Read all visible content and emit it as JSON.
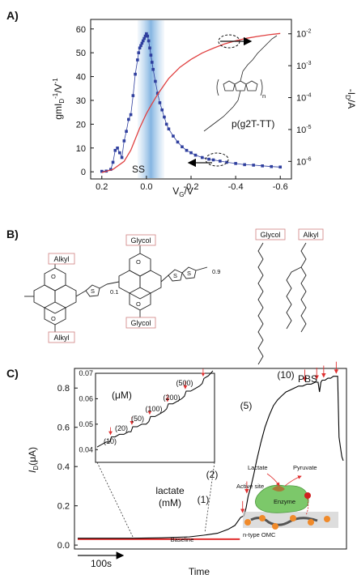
{
  "panels": {
    "a": {
      "letter": "A)"
    },
    "b": {
      "letter": "B)"
    },
    "c": {
      "letter": "C)"
    }
  },
  "chart_data": [
    {
      "type": "line",
      "panel": "A)",
      "xlabel": "V",
      "xlabel_sub": "G",
      "xlabel_unit": "/V",
      "ylabel_left": "gmI",
      "ylabel_left_sub": "D",
      "ylabel_left_sup1": "-1",
      "ylabel_left_mid": "/V",
      "ylabel_left_sup2": "-1",
      "ylabel_right": "-I",
      "ylabel_right_sub": "D",
      "ylabel_right_unit": "/A",
      "x_reversed": true,
      "xlim": [
        0.25,
        -0.65
      ],
      "ylim_left": [
        -3,
        64
      ],
      "x_ticks": [
        "0.2",
        "0.0",
        "-0.2",
        "-0.4",
        "-0.6"
      ],
      "x_tick_values": [
        0.2,
        0.0,
        -0.2,
        -0.4,
        -0.6
      ],
      "y_left_ticks": [
        0,
        10,
        20,
        30,
        40,
        50,
        60
      ],
      "y_right_ticks": [
        "10",
        "10",
        "10",
        "10",
        "10"
      ],
      "y_right_exponents": [
        "-2",
        "-3",
        "-4",
        "-5",
        "-6"
      ],
      "y_right_exp_values": [
        -2,
        -3,
        -4,
        -5,
        -6
      ],
      "annotation_ss": "SS",
      "polymer_name": "p(g2T-TT)",
      "polymer_n": "n",
      "series": [
        {
          "name": "gm/ID",
          "axis": "left",
          "color": "#2f3f9e",
          "x": [
            0.2,
            0.18,
            0.16,
            0.15,
            0.14,
            0.13,
            0.12,
            0.11,
            0.1,
            0.09,
            0.08,
            0.07,
            0.06,
            0.05,
            0.04,
            0.035,
            0.03,
            0.025,
            0.02,
            0.015,
            0.01,
            0.005,
            0.0,
            -0.005,
            -0.01,
            -0.015,
            -0.02,
            -0.025,
            -0.03,
            -0.04,
            -0.05,
            -0.06,
            -0.07,
            -0.08,
            -0.09,
            -0.1,
            -0.12,
            -0.14,
            -0.16,
            -0.18,
            -0.2,
            -0.22,
            -0.25,
            -0.28,
            -0.3,
            -0.33,
            -0.36,
            -0.4,
            -0.44,
            -0.48,
            -0.52,
            -0.56,
            -0.6
          ],
          "y": [
            0.2,
            0.3,
            1,
            4,
            9,
            10,
            8,
            6,
            13,
            17,
            22,
            24,
            32,
            41,
            47,
            50,
            52,
            53,
            54,
            55,
            56,
            57,
            58,
            57,
            55,
            52,
            49,
            46,
            43,
            38,
            33,
            29,
            26,
            23,
            20,
            18,
            15,
            12.5,
            10.5,
            9,
            8,
            7,
            6,
            5.3,
            5,
            4.5,
            4,
            3.5,
            3,
            2.8,
            2.5,
            2.2,
            2
          ]
        },
        {
          "name": "-ID",
          "axis": "right_log",
          "color": "#e04040",
          "x": [
            0.2,
            0.15,
            0.1,
            0.07,
            0.05,
            0.03,
            0.01,
            0.0,
            -0.02,
            -0.05,
            -0.08,
            -0.1,
            -0.15,
            -0.2,
            -0.25,
            -0.3,
            -0.35,
            -0.4,
            -0.45,
            -0.5,
            -0.55,
            -0.6
          ],
          "y_log10": [
            -6.35,
            -6.25,
            -6.0,
            -5.65,
            -5.3,
            -4.95,
            -4.65,
            -4.5,
            -4.25,
            -3.9,
            -3.6,
            -3.4,
            -3.05,
            -2.8,
            -2.6,
            -2.45,
            -2.32,
            -2.22,
            -2.14,
            -2.08,
            -2.03,
            -1.99
          ]
        }
      ]
    },
    {
      "type": "line",
      "panel": "C)",
      "xlabel": "Time",
      "ylabel": "I",
      "ylabel_sub": "D",
      "ylabel_unit": "(μA)",
      "ylim": [
        -0.02,
        0.9
      ],
      "y_ticks": [
        "0.0",
        "0.2",
        "0.4",
        "0.6",
        "0.8"
      ],
      "y_tick_values": [
        0.0,
        0.2,
        0.4,
        0.6,
        0.8
      ],
      "scale_bar": "100s",
      "baseline_label": "Baseline",
      "analyte_label": "lactate",
      "analyte_unit": "(mM)",
      "pbs_label": "PBS",
      "additions_mM": [
        "(1)",
        "(2)",
        "(5)",
        "(10)"
      ],
      "series": [
        {
          "name": "ID",
          "color": "#000000",
          "t": [
            0,
            40,
            80,
            120,
            160,
            180,
            200,
            215,
            225,
            233,
            238,
            241,
            244,
            248,
            252,
            256,
            262,
            268,
            274,
            280,
            286,
            292,
            298,
            304,
            310,
            316,
            322,
            328,
            334,
            340,
            344,
            346,
            348,
            350,
            354,
            358,
            362,
            366,
            370,
            372,
            374,
            376,
            378,
            380
          ],
          "y": [
            0.035,
            0.035,
            0.035,
            0.037,
            0.042,
            0.05,
            0.06,
            0.08,
            0.1,
            0.14,
            0.15,
            0.19,
            0.25,
            0.3,
            0.36,
            0.43,
            0.52,
            0.6,
            0.66,
            0.71,
            0.74,
            0.76,
            0.78,
            0.79,
            0.8,
            0.81,
            0.81,
            0.82,
            0.82,
            0.83,
            0.83,
            0.78,
            0.83,
            0.84,
            0.84,
            0.85,
            0.85,
            0.86,
            0.86,
            0.86,
            0.55,
            0.5,
            0.45,
            0.43
          ]
        },
        {
          "name": "Baseline",
          "color": "#e03030",
          "t": [
            0,
            232
          ],
          "y": [
            0.03,
            0.03
          ]
        }
      ],
      "inset": {
        "ylim": [
          0.035,
          0.07
        ],
        "y_ticks": [
          "0.04",
          "0.05",
          "0.06",
          "0.07"
        ],
        "y_tick_values": [
          0.04,
          0.05,
          0.06,
          0.07
        ],
        "unit_label": "(μM)",
        "additions_uM": [
          "(10)",
          "(20)",
          "(50)",
          "(100)",
          "(200)",
          "(500)"
        ],
        "t": [
          0,
          5,
          10,
          14,
          16,
          20,
          25,
          30,
          35,
          38,
          40,
          45,
          50,
          55,
          58,
          60,
          65,
          70,
          75,
          78,
          80,
          85,
          90,
          95,
          98,
          100,
          105,
          110,
          115,
          118,
          120,
          125,
          130
        ],
        "y": [
          0.041,
          0.042,
          0.043,
          0.043,
          0.045,
          0.045,
          0.046,
          0.046,
          0.047,
          0.047,
          0.049,
          0.049,
          0.05,
          0.05,
          0.051,
          0.053,
          0.053,
          0.054,
          0.055,
          0.056,
          0.058,
          0.058,
          0.059,
          0.06,
          0.061,
          0.063,
          0.063,
          0.064,
          0.065,
          0.066,
          0.068,
          0.069,
          0.071
        ]
      },
      "schematic": {
        "lactate": "Lactate",
        "pyruvate": "Pyruvate",
        "active_site": "Active\nsite",
        "enzyme": "Enzyme",
        "omc": "n-type OMC"
      }
    }
  ],
  "structures": {
    "labels": {
      "alkyl_top": "Alkyl",
      "glycol_top": "Glycol",
      "glycol_bottom": "Glycol",
      "alkyl_bottom": "Alkyl",
      "glycol_chain": "Glycol",
      "alkyl_chain": "Alkyl"
    },
    "ratio_a": "0.9",
    "ratio_b": "0.1"
  }
}
